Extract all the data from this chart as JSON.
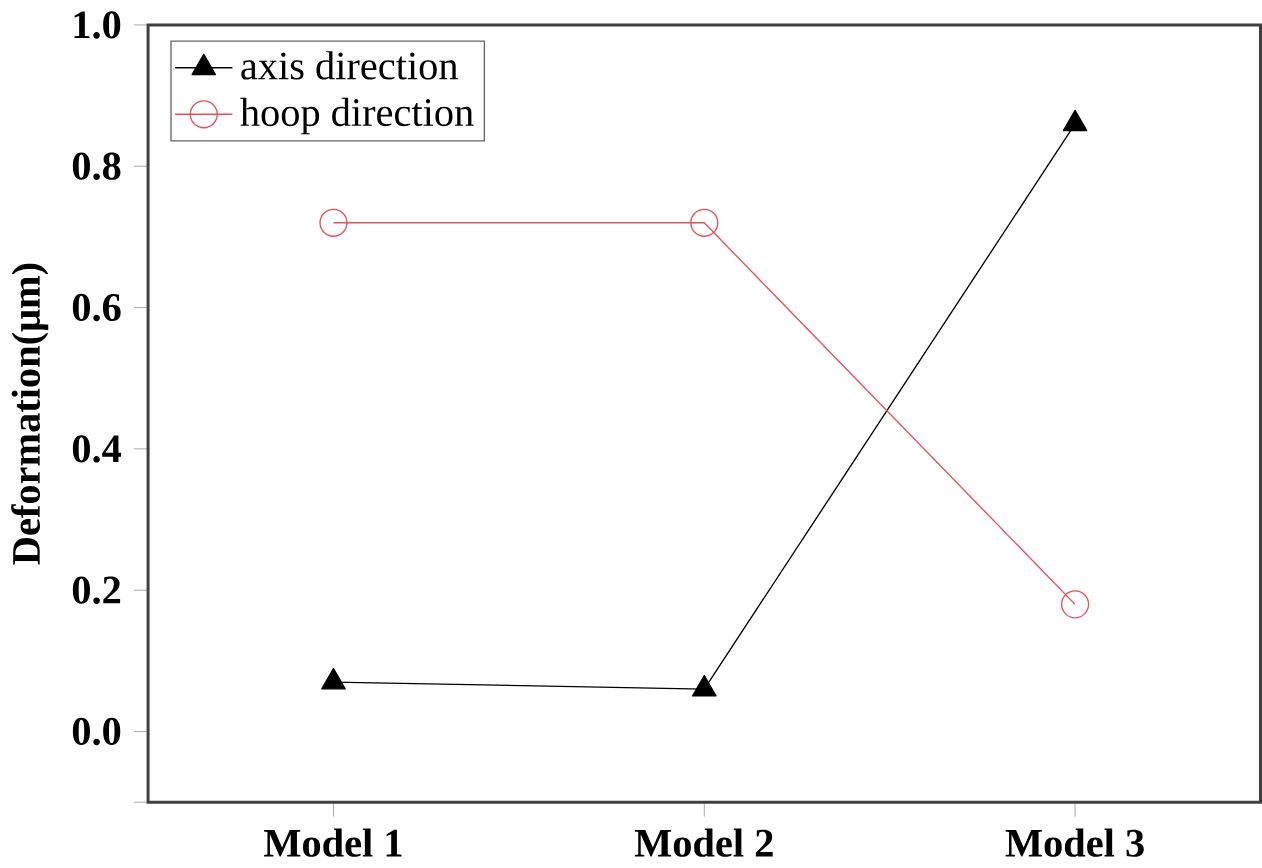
{
  "chart_data": {
    "type": "line",
    "ylabel": "Deformation(μm)",
    "categories": [
      "Model 1",
      "Model 2",
      "Model 3"
    ],
    "series": [
      {
        "name": "axis direction",
        "color": "#000000",
        "marker": "triangle",
        "values": [
          0.07,
          0.06,
          0.86
        ]
      },
      {
        "name": "hoop direction",
        "color": "#e8505a",
        "marker": "circle",
        "values": [
          0.72,
          0.72,
          0.18
        ]
      }
    ],
    "ylim": [
      -0.1,
      1.0
    ],
    "yticks": [
      {
        "value": -0.1,
        "label": null
      },
      "0.0",
      0.2,
      0.4,
      0.6,
      0.8,
      "1.0"
    ],
    "grid": false,
    "legend": "top left",
    "line_style": "solid"
  }
}
